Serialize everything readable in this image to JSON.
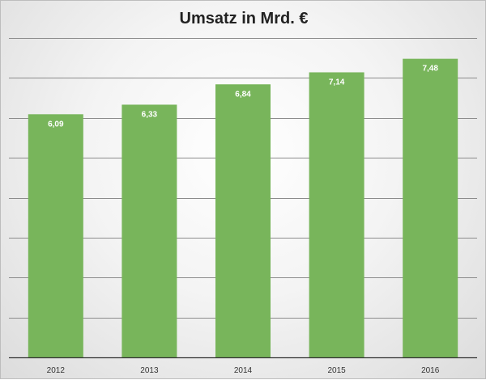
{
  "chart_data": {
    "type": "bar",
    "title": "Umsatz in Mrd.  €",
    "categories": [
      "2012",
      "2013",
      "2014",
      "2015",
      "2016"
    ],
    "values": [
      6.09,
      6.33,
      6.84,
      7.14,
      7.48
    ],
    "value_labels": [
      "6,09",
      "6,33",
      "6,84",
      "7,14",
      "7,48"
    ],
    "xlabel": "",
    "ylabel": "",
    "ylim": [
      0,
      8
    ],
    "grid": true,
    "legend": "none",
    "bar_color": "#78b55b"
  }
}
